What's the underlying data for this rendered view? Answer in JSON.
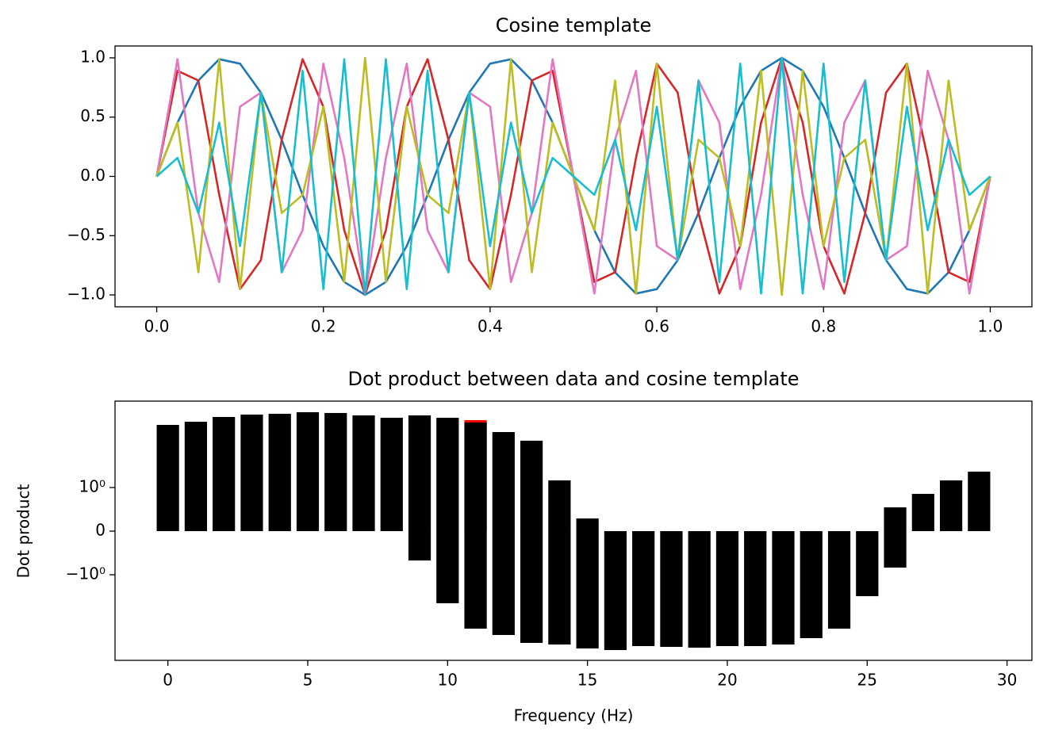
{
  "chart_data": [
    {
      "type": "line",
      "title": "Cosine template",
      "x": [
        0,
        0.025,
        0.05,
        0.075,
        0.1,
        0.125,
        0.15,
        0.175,
        0.2,
        0.225,
        0.25,
        0.275,
        0.3,
        0.325,
        0.35,
        0.375,
        0.4,
        0.425,
        0.45,
        0.475,
        0.5,
        0.525,
        0.55,
        0.575,
        0.6,
        0.625,
        0.65,
        0.675,
        0.7,
        0.725,
        0.75,
        0.775,
        0.8,
        0.825,
        0.85,
        0.875,
        0.9,
        0.925,
        0.95,
        0.975,
        1
      ],
      "series": [
        {
          "color": "#1f77b4",
          "values": [
            0,
            0.454,
            0.809,
            0.988,
            0.951,
            0.707,
            0.309,
            -0.156,
            -0.588,
            -0.891,
            -1,
            -0.891,
            -0.588,
            -0.156,
            0.309,
            0.707,
            0.951,
            0.988,
            0.809,
            0.454,
            0,
            -0.454,
            -0.809,
            -0.988,
            -0.951,
            -0.707,
            -0.309,
            0.156,
            0.588,
            0.891,
            1,
            0.891,
            0.588,
            0.156,
            -0.309,
            -0.707,
            -0.951,
            -0.988,
            -0.809,
            -0.454,
            0
          ]
        },
        {
          "color": "#d62728",
          "values": [
            0,
            0.891,
            0.809,
            -0.156,
            -0.951,
            -0.707,
            0.309,
            0.988,
            0.588,
            -0.454,
            -1,
            -0.454,
            0.588,
            0.988,
            0.309,
            -0.707,
            -0.951,
            -0.156,
            0.809,
            0.891,
            0,
            -0.891,
            -0.809,
            0.156,
            0.951,
            0.707,
            -0.309,
            -0.988,
            -0.588,
            0.454,
            1,
            0.454,
            -0.588,
            -0.988,
            -0.309,
            0.707,
            0.951,
            0.156,
            -0.809,
            -0.891,
            0
          ]
        },
        {
          "color": "#e377c2",
          "values": [
            0,
            0.988,
            -0.309,
            -0.891,
            0.588,
            0.707,
            -0.809,
            -0.454,
            0.951,
            0.156,
            -1,
            0.156,
            0.951,
            -0.454,
            -0.809,
            0.707,
            0.588,
            -0.891,
            -0.309,
            0.988,
            0,
            -0.988,
            0.309,
            0.891,
            -0.588,
            -0.707,
            0.809,
            0.454,
            -0.951,
            -0.156,
            1,
            -0.156,
            -0.951,
            0.454,
            0.809,
            -0.707,
            -0.588,
            0.891,
            0.309,
            -0.988,
            0
          ]
        },
        {
          "color": "#bcbd22",
          "values": [
            0,
            0.454,
            -0.809,
            0.988,
            -0.951,
            0.707,
            -0.309,
            -0.156,
            0.588,
            -0.891,
            1,
            -0.891,
            0.588,
            -0.156,
            -0.309,
            0.707,
            -0.951,
            0.988,
            -0.809,
            0.454,
            0,
            -0.454,
            0.809,
            -0.988,
            0.951,
            -0.707,
            0.309,
            0.156,
            -0.588,
            0.891,
            -1,
            0.891,
            -0.588,
            0.156,
            0.309,
            -0.707,
            0.951,
            -0.988,
            0.809,
            -0.454,
            0
          ]
        },
        {
          "color": "#17becf",
          "values": [
            0,
            0.156,
            -0.309,
            0.454,
            -0.588,
            0.707,
            -0.809,
            0.891,
            -0.951,
            0.988,
            -1,
            0.988,
            -0.951,
            0.891,
            -0.809,
            0.707,
            -0.588,
            0.454,
            -0.309,
            0.156,
            0,
            -0.156,
            0.309,
            -0.454,
            0.588,
            -0.707,
            0.809,
            -0.891,
            0.951,
            -0.988,
            1,
            -0.988,
            0.951,
            -0.891,
            0.809,
            -0.707,
            0.588,
            -0.454,
            0.309,
            -0.156,
            0
          ]
        }
      ],
      "xlim": [
        -0.05,
        1.05
      ],
      "xticks": [
        {
          "value": 0,
          "label": "0.0"
        },
        0.2,
        0.4,
        0.6,
        0.8,
        {
          "value": 1,
          "label": "1.0"
        }
      ],
      "ylim": [
        -1.1,
        1.1
      ],
      "yticks": [
        {
          "value": 1,
          "label": "1.0"
        },
        0.5,
        {
          "value": 0,
          "label": "0.0"
        },
        {
          "value": -0.5,
          "label": "−0.5"
        },
        {
          "value": -1,
          "label": "−1.0"
        }
      ]
    },
    {
      "type": "bar",
      "title": "Dot product between data and cosine template",
      "xlabel": "Frequency (Hz)",
      "ylabel": "Dot product",
      "x": [
        0,
        1,
        2,
        3,
        4,
        5,
        6,
        7,
        8,
        9,
        10,
        11,
        12,
        13,
        14,
        15,
        16,
        17,
        18,
        19,
        20,
        21,
        22,
        23,
        24,
        25,
        26,
        27,
        28,
        29
      ],
      "series": [
        {
          "color": "#ff0000",
          "values": [
            null,
            null,
            null,
            null,
            null,
            null,
            null,
            null,
            null,
            null,
            null,
            52.1,
            null,
            null,
            null,
            null,
            null,
            null,
            null,
            null,
            null,
            null,
            null,
            null,
            null,
            null,
            null,
            null,
            null,
            null
          ]
        },
        {
          "color": "#000000",
          "values": [
            39.4,
            47.5,
            62.8,
            72.2,
            75.7,
            83,
            79.3,
            68.9,
            60,
            68.9,
            60,
            45.4,
            25.9,
            15.6,
            1.52,
            0.29,
            0,
            0,
            0,
            0,
            0,
            0,
            0,
            0,
            0,
            0,
            0.545,
            0.855,
            1.52,
            2.54
          ]
        },
        {
          "color": "#000000",
          "values": [
            0,
            0,
            0,
            0,
            0,
            0,
            0,
            0,
            0,
            -0.673,
            -5.33,
            -23.7,
            -34.3,
            -54.6,
            -60,
            -75.7,
            -83,
            -65.8,
            -68.9,
            -72.2,
            -65.8,
            -65.8,
            -60,
            -41.3,
            -23.7,
            -3.52,
            -0.836,
            0,
            0,
            0
          ]
        }
      ],
      "xlim": [
        -1.89,
        30.89
      ],
      "xticks": [
        0,
        5,
        10,
        15,
        20,
        25,
        30
      ],
      "yscale": "symlog",
      "linthresh": 1,
      "ylim": [
        -152,
        159
      ],
      "yticks": [
        {
          "value": 1,
          "label": "10⁰"
        },
        0,
        {
          "value": -1,
          "label": "−10⁰"
        }
      ]
    }
  ]
}
